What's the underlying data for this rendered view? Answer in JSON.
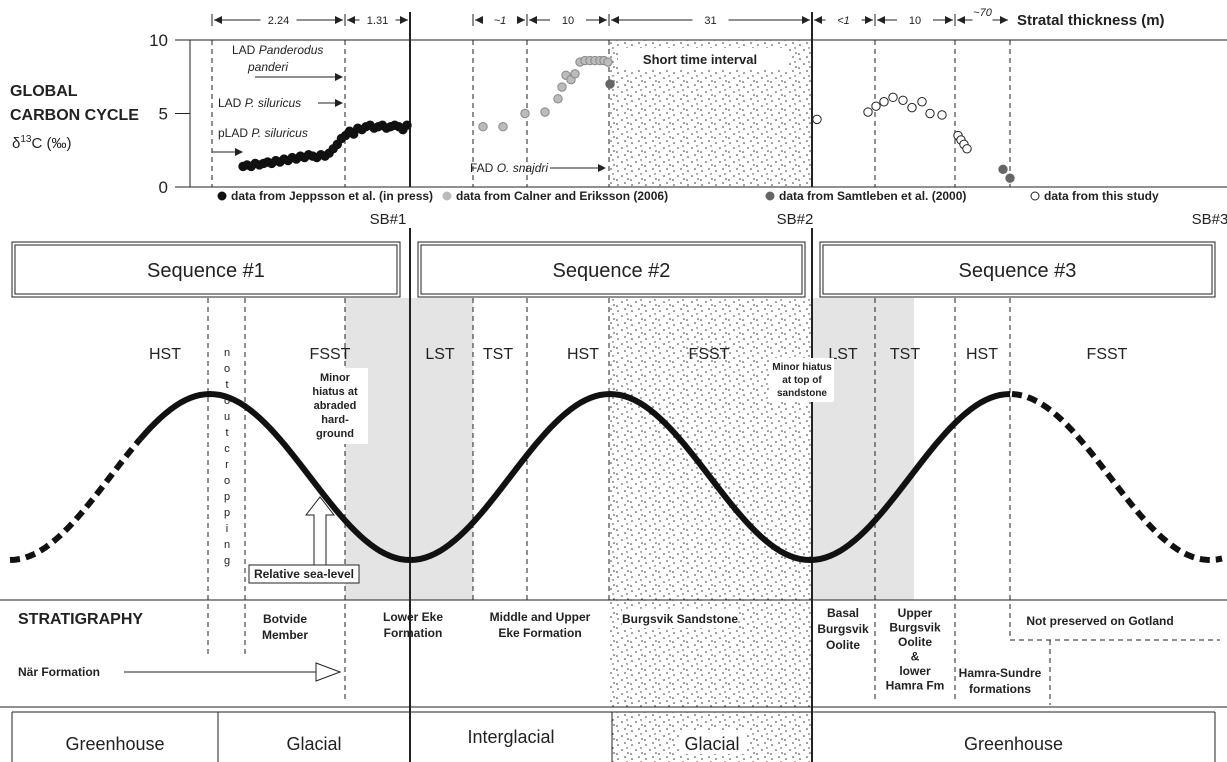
{
  "chart": {
    "y_label": [
      "GLOBAL",
      "CARBON CYCLE"
    ],
    "delta": {
      "symbol": "δ",
      "sup": "13",
      "unit": "C (‰)"
    },
    "ylim": [
      0,
      10
    ],
    "yticks": [
      0,
      5,
      10
    ],
    "thickness": {
      "segments": [
        2.24,
        1.31,
        "~1",
        10,
        31,
        "<1",
        10,
        "~70"
      ],
      "title": "Stratal thickness (m)"
    },
    "series": [
      {
        "name": "data from Jeppsson et al. (in press)",
        "color": "#111111",
        "values": [
          1.4,
          1.5,
          1.4,
          1.6,
          1.5,
          1.6,
          1.7,
          1.6,
          1.8,
          1.7,
          1.9,
          1.8,
          2.0,
          1.9,
          2.1,
          2.0,
          2.2,
          2.1,
          2.0,
          2.2,
          2.1,
          2.3,
          2.6,
          2.9,
          3.3,
          3.5,
          3.8,
          3.6,
          4.0,
          3.9,
          4.1,
          4.2,
          4.0,
          4.1,
          4.2,
          4.0,
          4.1,
          4.2,
          4.1,
          3.9,
          4.2
        ]
      },
      {
        "name": "data from Calner and Eriksson (2006)",
        "color": "#bbbbbb",
        "values": [
          4.1,
          4.1,
          5.0,
          5.1,
          6.0,
          6.8,
          7.6,
          7.3,
          7.7,
          8.5,
          8.6,
          8.6,
          8.6,
          8.6,
          8.6,
          8.5
        ]
      },
      {
        "name": "data from Samtleben et al. (2000)",
        "color": "#666666",
        "values": [
          7.0,
          1.2,
          0.6
        ]
      },
      {
        "name": "data from this study",
        "color": "#ffffff",
        "values": [
          4.6,
          5.1,
          5.5,
          5.8,
          6.1,
          5.9,
          5.4,
          5.8,
          5.0,
          4.9,
          3.5,
          3.2,
          2.9,
          2.6
        ]
      }
    ],
    "annotations": {
      "panderi": {
        "prefix": "LAD",
        "taxon": "Panderodus",
        "taxon2": "panderi"
      },
      "siluricus": {
        "prefix": "LAD",
        "taxon": "P. siluricus"
      },
      "psiluricus": {
        "prefix": "pLAD",
        "taxon": "P. siluricus"
      },
      "snajdri": {
        "prefix": "FAD",
        "taxon": "O. snajdri"
      },
      "short": "Short time interval"
    }
  },
  "boundaries": [
    "SB#1",
    "SB#2",
    "SB#3"
  ],
  "sequences": [
    "Sequence #1",
    "Sequence #2",
    "Sequence #3"
  ],
  "systems_tracts": [
    "HST",
    "FSST",
    "LST",
    "TST",
    "HST",
    "FSST",
    "LST",
    "TST",
    "HST",
    "FSST"
  ],
  "not_outcropping": [
    "n",
    "o",
    "t",
    "o",
    "u",
    "t",
    "c",
    "r",
    "o",
    "p",
    "p",
    "i",
    "n",
    "g"
  ],
  "notes": {
    "hiatus1": [
      "Minor",
      "hiatus at",
      "abraded",
      "hard-",
      "ground"
    ],
    "hiatus2": [
      "Minor hiatus",
      "at top of",
      "sandstone"
    ],
    "sea_level": "Relative sea-level"
  },
  "stratigraphy": {
    "title": "STRATIGRAPHY",
    "units": [
      [
        "Botvide",
        "Member"
      ],
      [
        "Lower Eke",
        "Formation"
      ],
      [
        "Middle and Upper",
        "Eke Formation"
      ],
      [
        "Burgsvik Sandstone"
      ],
      [
        "Basal",
        "Burgsvik",
        "Oolite"
      ],
      [
        "Upper",
        "Burgsvik",
        "Oolite",
        "&",
        "lower",
        "Hamra Fm"
      ],
      [
        "Not preserved on Gotland"
      ],
      [
        "Hamra-Sundre",
        "formations"
      ]
    ],
    "nar": "När Formation"
  },
  "climate": [
    "Greenhouse",
    "Glacial",
    "Interglacial",
    "Glacial",
    "Greenhouse"
  ]
}
